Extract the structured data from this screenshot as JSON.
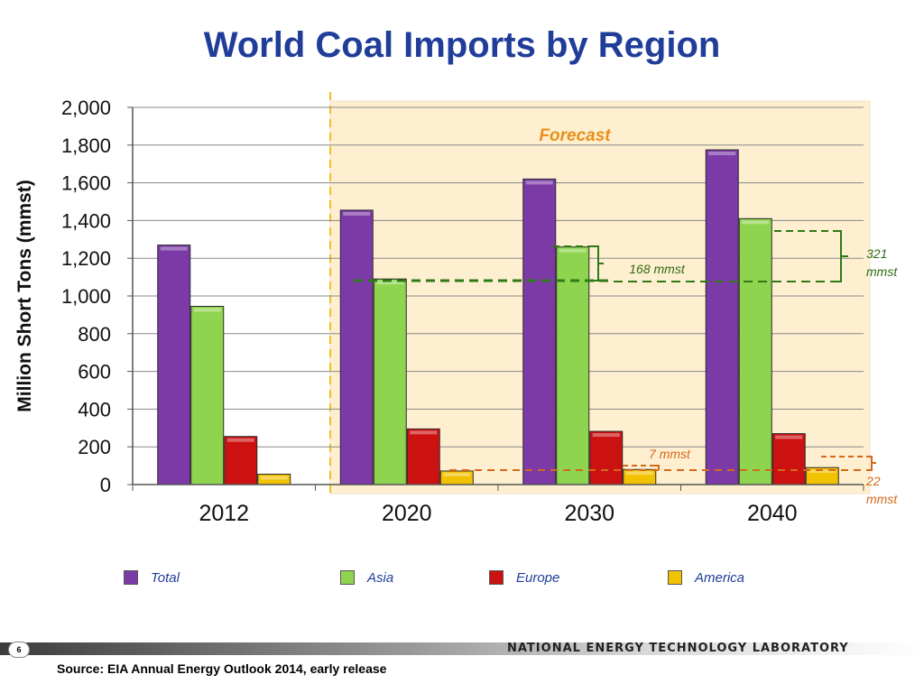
{
  "slide": {
    "title": "World Coal Imports by Region",
    "page_number": "6",
    "organization": "NATIONAL ENERGY TECHNOLOGY LABORATORY",
    "source": "Source: EIA Annual Energy Outlook 2014, early release"
  },
  "chart_data": {
    "type": "bar",
    "title": "World Coal Imports by Region",
    "xlabel": "",
    "ylabel": "Million Short Tons (mmst)",
    "categories": [
      "2012",
      "2020",
      "2030",
      "2040"
    ],
    "ylim": [
      0,
      2000
    ],
    "yticks": [
      0,
      200,
      400,
      600,
      800,
      1000,
      1200,
      1400,
      1600,
      1800,
      2000
    ],
    "ytick_labels": [
      "0",
      "200",
      "400",
      "600",
      "800",
      "1,000",
      "1,200",
      "1,400",
      "1,600",
      "1,800",
      "2,000"
    ],
    "grid": true,
    "legend_position": "bottom",
    "series": [
      {
        "name": "Total",
        "color": "#7b3aa6",
        "values": [
          1270,
          1455,
          1620,
          1775
        ]
      },
      {
        "name": "Asia",
        "color": "#8fd44f",
        "values": [
          945,
          1090,
          1260,
          1410
        ]
      },
      {
        "name": "Europe",
        "color": "#cc1111",
        "values": [
          255,
          295,
          282,
          270
        ]
      },
      {
        "name": "America",
        "color": "#f2c200",
        "values": [
          55,
          72,
          80,
          90
        ]
      }
    ],
    "forecast_label": "Forecast",
    "annotations": [
      {
        "text": "168 mmst",
        "color": "#2f6b12"
      },
      {
        "text": "321",
        "color": "#2f6b12"
      },
      {
        "text": "mmst",
        "color": "#2f6b12"
      },
      {
        "text": "7 mmst",
        "color": "#d4691a"
      },
      {
        "text": "22",
        "color": "#d4691a"
      },
      {
        "text": "mmst",
        "color": "#d4691a"
      }
    ]
  }
}
